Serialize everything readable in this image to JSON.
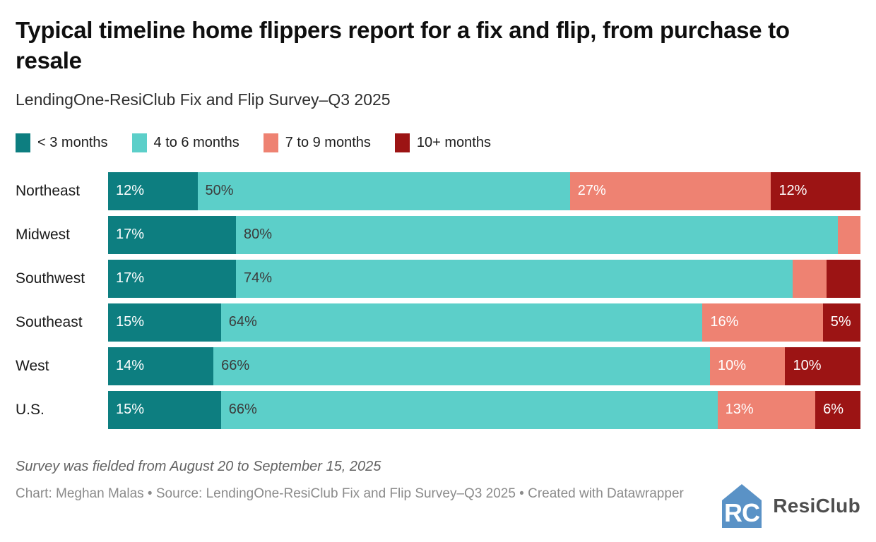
{
  "header": {
    "title": "Typical timeline home flippers report for a fix and flip, from purchase to resale",
    "subtitle": "LendingOne-ResiClub Fix and Flip Survey–Q3 2025"
  },
  "legend": {
    "items": [
      {
        "label": "< 3 months",
        "color": "#0d7e80"
      },
      {
        "label": "4 to 6 months",
        "color": "#5ccfc9"
      },
      {
        "label": "7 to 9 months",
        "color": "#ee8272"
      },
      {
        "label": "10+ months",
        "color": "#9c1414"
      }
    ]
  },
  "chart_data": {
    "type": "bar",
    "subtype": "horizontal-stacked-100percent",
    "unit": "%",
    "title": "Typical timeline home flippers report for a fix and flip, from purchase to resale",
    "subtitle": "LendingOne-ResiClub Fix and Flip Survey–Q3 2025",
    "series_names": [
      "< 3 months",
      "4 to 6 months",
      "7 to 9 months",
      "10+ months"
    ],
    "colors": [
      "#0d7e80",
      "#5ccfc9",
      "#ee8272",
      "#9c1414"
    ],
    "categories": [
      "Northeast",
      "Midwest",
      "Southwest",
      "Southeast",
      "West",
      "U.S."
    ],
    "xlim": [
      0,
      100
    ],
    "grid": false,
    "legend_position": "top",
    "rows": [
      {
        "region": "Northeast",
        "segments": [
          {
            "value": 12,
            "label": "12%"
          },
          {
            "value": 50,
            "label": "50%"
          },
          {
            "value": 27,
            "label": "27%"
          },
          {
            "value": 12,
            "label": "12%"
          }
        ]
      },
      {
        "region": "Midwest",
        "segments": [
          {
            "value": 17,
            "label": "17%"
          },
          {
            "value": 80,
            "label": "80%"
          },
          {
            "value": 3,
            "label": ""
          },
          {
            "value": 0,
            "label": ""
          }
        ]
      },
      {
        "region": "Southwest",
        "segments": [
          {
            "value": 17,
            "label": "17%"
          },
          {
            "value": 74,
            "label": "74%"
          },
          {
            "value": 4.5,
            "label": ""
          },
          {
            "value": 4.5,
            "label": ""
          }
        ]
      },
      {
        "region": "Southeast",
        "segments": [
          {
            "value": 15,
            "label": "15%"
          },
          {
            "value": 64,
            "label": "64%"
          },
          {
            "value": 16,
            "label": "16%"
          },
          {
            "value": 5,
            "label": "5%"
          }
        ]
      },
      {
        "region": "West",
        "segments": [
          {
            "value": 14,
            "label": "14%"
          },
          {
            "value": 66,
            "label": "66%"
          },
          {
            "value": 10,
            "label": "10%"
          },
          {
            "value": 10,
            "label": "10%"
          }
        ]
      },
      {
        "region": "U.S.",
        "segments": [
          {
            "value": 15,
            "label": "15%"
          },
          {
            "value": 66,
            "label": "66%"
          },
          {
            "value": 13,
            "label": "13%"
          },
          {
            "value": 6,
            "label": "6%"
          }
        ]
      }
    ]
  },
  "footer": {
    "note": "Survey was fielded from August 20 to September 15, 2025",
    "credit": "Chart: Meghan Malas • Source: LendingOne-ResiClub Fix and Flip Survey–Q3 2025 • Created with Datawrapper",
    "logo_monogram": "RC",
    "logo_text": "ResiClub",
    "logo_color": "#5a92c6"
  }
}
